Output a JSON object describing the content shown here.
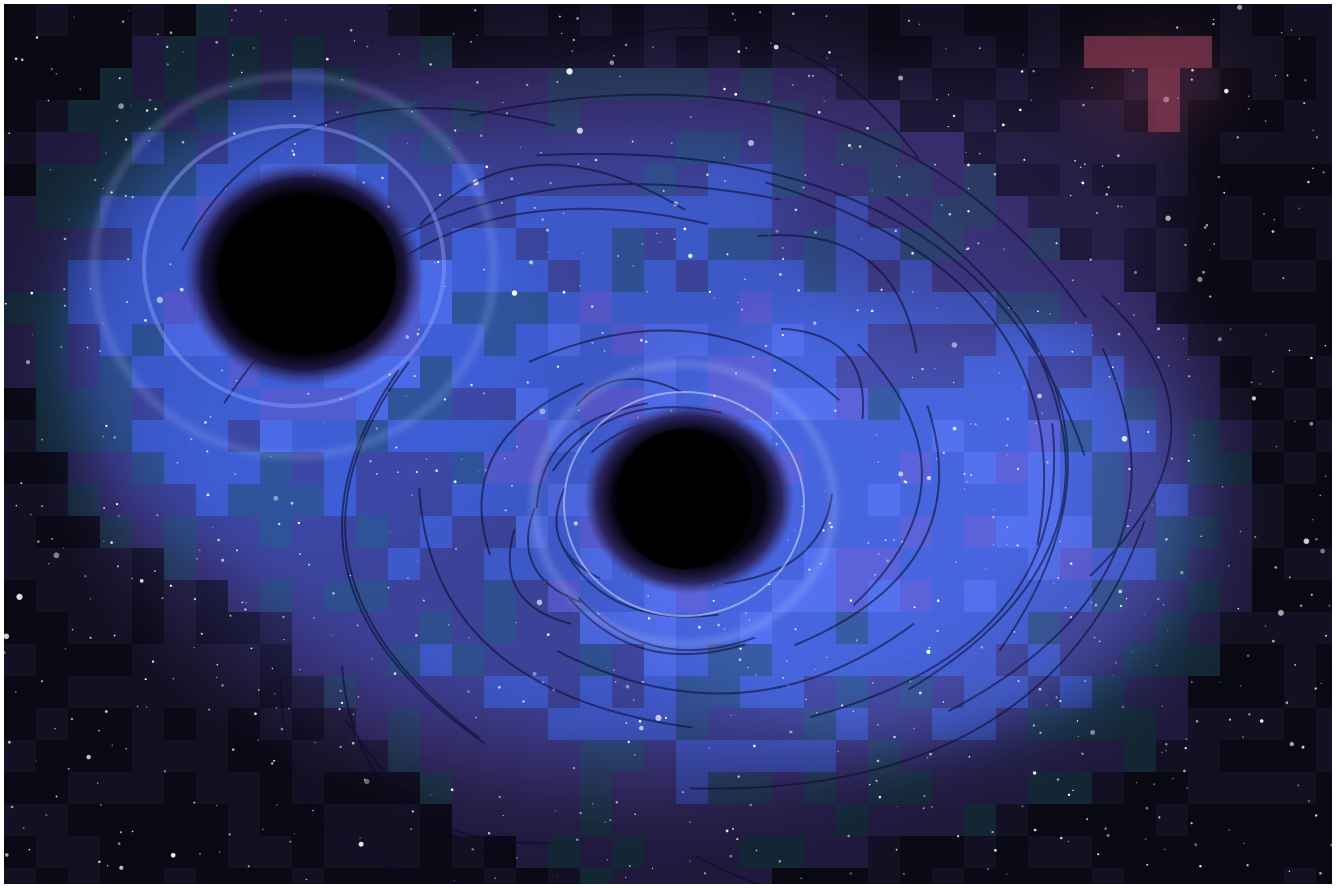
{
  "image": {
    "subject": "binary-black-hole-merger",
    "palette": {
      "space": "#0a0a14",
      "nebula_purple": "#3a2f6e",
      "glow_blue": "#3f5fd8",
      "bright_blue": "#5b7bff",
      "teal": "#1e4a5c",
      "violet": "#6a5cd0",
      "red_patch": "#8a3a52",
      "star": "#ffffff",
      "ring": "#b7c4ff",
      "hole": "#000000"
    },
    "mosaic_block": 32
  }
}
